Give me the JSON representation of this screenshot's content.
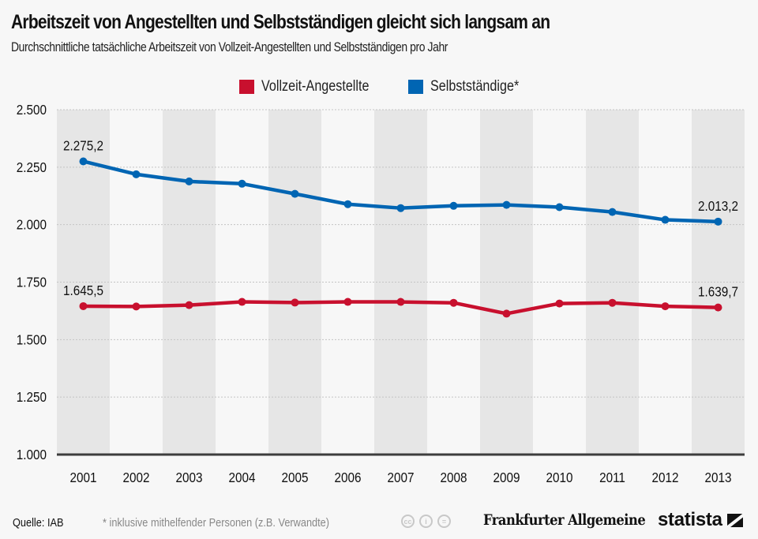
{
  "header": {
    "title": "Arbeitszeit von Angestellten und Selbstständigen gleicht sich langsam an",
    "subtitle": "Durchschnittliche tatsächliche Arbeitszeit von Vollzeit-Angestellten und Selbstständigen pro Jahr"
  },
  "legend": [
    {
      "label": "Vollzeit-Angestellte",
      "color": "#c8102e"
    },
    {
      "label": "Selbstständige*",
      "color": "#0065b3"
    }
  ],
  "footer": {
    "source": "Quelle: IAB",
    "note": "* inklusive mithelfender Personen (z.B. Verwandte)",
    "license_icons": [
      "cc-icon",
      "attribution-icon",
      "no-derivatives-icon"
    ],
    "license_glyphs": [
      "cc",
      "i",
      "="
    ],
    "publisher": "Frankfurter Allgemeine",
    "brand": "statista"
  },
  "chart_data": {
    "type": "line",
    "title": "Arbeitszeit von Angestellten und Selbstständigen gleicht sich langsam an",
    "subtitle": "Durchschnittliche tatsächliche Arbeitszeit von Vollzeit-Angestellten und Selbstständigen pro Jahr",
    "xlabel": "",
    "ylabel": "",
    "x": [
      "2001",
      "2002",
      "2003",
      "2004",
      "2005",
      "2006",
      "2007",
      "2008",
      "2009",
      "2010",
      "2011",
      "2012",
      "2013"
    ],
    "ylim": [
      1000,
      2500
    ],
    "yticks": [
      1000,
      1250,
      1500,
      1750,
      2000,
      2250,
      2500
    ],
    "ytick_labels": [
      "1.000",
      "1.250",
      "1.500",
      "1.750",
      "2.000",
      "2.250",
      "2.500"
    ],
    "grid": "horizontal dotted, alternating column bands",
    "legend_position": "top-center",
    "series": [
      {
        "name": "Vollzeit-Angestellte",
        "color": "#c8102e",
        "values": [
          1645.5,
          1644,
          1650,
          1664,
          1661,
          1664,
          1664,
          1660,
          1613,
          1657,
          1660,
          1645,
          1639.7
        ],
        "labels": [
          {
            "index": 0,
            "text": "1.645,5"
          },
          {
            "index": 12,
            "text": "1.639,7"
          }
        ]
      },
      {
        "name": "Selbstständige*",
        "color": "#0065b3",
        "values": [
          2275.2,
          2219,
          2188,
          2178,
          2134,
          2089,
          2072,
          2082,
          2086,
          2076,
          2055,
          2021,
          2013.2
        ],
        "labels": [
          {
            "index": 0,
            "text": "2.275,2"
          },
          {
            "index": 12,
            "text": "2.013,2"
          }
        ]
      }
    ]
  }
}
